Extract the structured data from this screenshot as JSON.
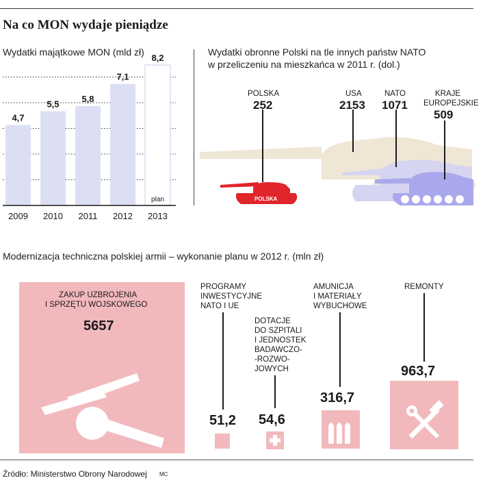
{
  "header": {
    "title": "Na co MON wydaje pieniądze"
  },
  "colors": {
    "bar": "#dcdff4",
    "plan": "#dcdff4",
    "pink": "#f2b9bd",
    "red": "#e0252b",
    "tan": "#f0e6d6",
    "lilac": "#d5d5f1",
    "violet": "#aaa8ec"
  },
  "chart_data": [
    {
      "type": "bar",
      "title": "Wydatki majątkowe MON (mld zł)",
      "categories": [
        "2009",
        "2010",
        "2011",
        "2012",
        "2013"
      ],
      "values": [
        4.7,
        5.5,
        5.8,
        7.1,
        8.2
      ],
      "value_labels": [
        "4,7",
        "5,5",
        "5,8",
        "7,1",
        "8,2"
      ],
      "planned": [
        false,
        false,
        false,
        false,
        true
      ],
      "plan_label": "plan",
      "ylim": [
        0,
        8.5
      ],
      "grid": true
    },
    {
      "type": "bar",
      "title": "Wydatki obronne Polski na tle innych państw NATO",
      "subtitle": "w przeliczeniu na mieszkańca w 2011 r. (dol.)",
      "categories": [
        "POLSKA",
        "USA",
        "NATO",
        "KRAJE EUROPEJSKIE"
      ],
      "values": [
        252,
        2153,
        1071,
        509
      ],
      "value_labels": [
        "252",
        "2153",
        "1071",
        "509"
      ]
    },
    {
      "type": "bar",
      "title": "Modernizacja techniczna polskiej armii – wykonanie planu w 2012 r. (mln zł)",
      "categories": [
        "ZAKUP UZBROJENIA I SPRZĘTU WOJSKOWEGO",
        "PROGRAMY INWESTYCYJNE NATO I UE",
        "DOTACJE DO SZPITALI I JEDNOSTEK BADAWCZO-ROZWOJOWYCH",
        "AMUNICJA I MATERIAŁY WYBUCHOWE",
        "REMONTY"
      ],
      "values": [
        5657,
        51.2,
        54.6,
        316.7,
        963.7
      ],
      "value_labels": [
        "5657",
        "51,2",
        "54,6",
        "316,7",
        "963,7"
      ]
    }
  ],
  "nato": {
    "polska": {
      "name": "POLSKA",
      "value": "252",
      "tank_label": "POLSKA"
    },
    "usa": {
      "name": "USA",
      "value": "2153"
    },
    "nato": {
      "name": "NATO",
      "value": "1071"
    },
    "eu": {
      "name1": "KRAJE",
      "name2": "EUROPEJSKIE",
      "value": "509"
    }
  },
  "mod": {
    "zakup": {
      "l1": "ZAKUP UZBROJENIA",
      "l2": "I SPRZĘTU WOJSKOWEGO",
      "value": "5657"
    },
    "programy": {
      "l1": "PROGRAMY",
      "l2": "INWESTYCYJNE",
      "l3": "NATO I UE",
      "value": "51,2"
    },
    "dotacje": {
      "l1": "DOTACJE",
      "l2": "DO SZPITALI",
      "l3": "I JEDNOSTEK",
      "l4": "BADAWCZO-",
      "l5": "-ROZWO-",
      "l6": "JOWYCH",
      "value": "54,6"
    },
    "amunicja": {
      "l1": "AMUNICJA",
      "l2": "I MATERIAŁY",
      "l3": "WYBUCHOWE",
      "value": "316,7"
    },
    "remonty": {
      "l1": "REMONTY",
      "value": "963,7"
    }
  },
  "footer": {
    "source": "Źródło: Ministerstwo Obrony Narodowej",
    "credit": "MC"
  }
}
